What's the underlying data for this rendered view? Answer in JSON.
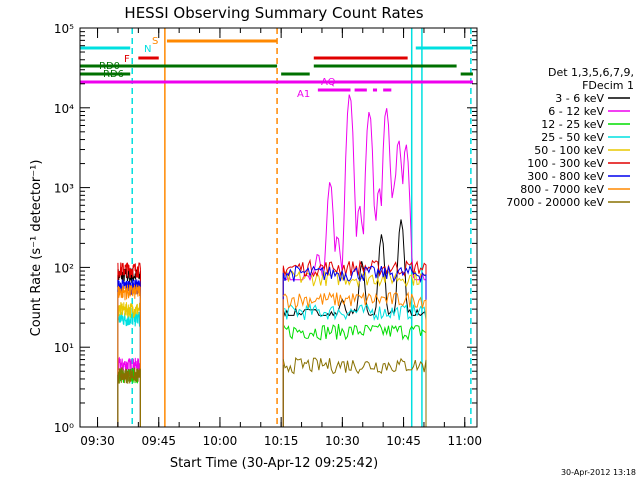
{
  "chart_data": {
    "type": "line",
    "title": "HESSI Observing Summary Count Rates",
    "xlabel": "Start Time (30-Apr-12 09:25:42)",
    "ylabel": "Count Rate (s⁻¹ detector⁻¹)",
    "ylog": true,
    "ylim": [
      1,
      100000
    ],
    "xlim": [
      "09:25:42",
      "11:03:00"
    ],
    "x_ticks": [
      "09:30",
      "09:45",
      "10:00",
      "10:15",
      "10:30",
      "10:45",
      "11:00"
    ],
    "y_ticks": [
      "10⁰",
      "10¹",
      "10²",
      "10³",
      "10⁴",
      "10⁵"
    ],
    "timestamp": "30-Apr-2012 13:18",
    "legend": {
      "placement": "right",
      "header": [
        "Det 1,3,5,6,7,9,",
        "FDecim 1"
      ],
      "entries": [
        {
          "name": "3 - 6 keV",
          "color": "#000000"
        },
        {
          "name": "6 - 12 keV",
          "color": "#ee00ee"
        },
        {
          "name": "12 - 25 keV",
          "color": "#00dd00"
        },
        {
          "name": "25 - 50 keV",
          "color": "#00e0e0"
        },
        {
          "name": "50 - 100 keV",
          "color": "#e8c800"
        },
        {
          "name": "100 - 300 keV",
          "color": "#e00000"
        },
        {
          "name": "300 - 800 keV",
          "color": "#0000ee"
        },
        {
          "name": "800 - 7000 keV",
          "color": "#ff8800"
        },
        {
          "name": "7000 - 20000 keV",
          "color": "#887000"
        }
      ]
    },
    "flags": [
      {
        "label": "N",
        "color": "#00e0e0",
        "segments": [
          [
            "09:25:42",
            "09:38:00"
          ],
          [
            "10:48:00",
            "11:02:00"
          ]
        ]
      },
      {
        "label": "S",
        "color": "#ff8800",
        "segments": [
          [
            "09:47:00",
            "10:14:00"
          ]
        ]
      },
      {
        "label": "F",
        "color": "#e00000",
        "segments": [
          [
            "09:40:00",
            "09:45:00"
          ],
          [
            "10:23:00",
            "10:46:00"
          ]
        ]
      },
      {
        "label": "RD0",
        "color": "#007000",
        "segments": [
          [
            "09:25:42",
            "10:14:00"
          ],
          [
            "10:23:00",
            "10:58:00"
          ]
        ]
      },
      {
        "label": "RD6",
        "color": "#007000",
        "segments": [
          [
            "09:25:42",
            "09:38:00"
          ],
          [
            "10:15:00",
            "10:22:00"
          ],
          [
            "10:59:00",
            "11:02:00"
          ]
        ]
      },
      {
        "label": "AQ",
        "color": "#ee00ee",
        "segments": [
          [
            "10:24:00",
            "10:32:00"
          ],
          [
            "10:33:00",
            "10:36:00"
          ],
          [
            "10:37:30",
            "10:38:30"
          ],
          [
            "10:40:00",
            "10:42:00"
          ]
        ]
      },
      {
        "label": "A1",
        "color": "#ee00ee",
        "segments": [
          [
            "09:25:42",
            "11:02:00"
          ]
        ]
      }
    ],
    "vlines": [
      {
        "time": "09:38:30",
        "color": "#00e0e0",
        "style": "dashed"
      },
      {
        "time": "09:46:30",
        "color": "#ff8800",
        "style": "solid"
      },
      {
        "time": "10:14:00",
        "color": "#ff8800",
        "style": "dashed"
      },
      {
        "time": "10:47:00",
        "color": "#00e0e0",
        "style": "solid"
      },
      {
        "time": "10:49:30",
        "color": "#00e0e0",
        "style": "solid"
      },
      {
        "time": "11:01:30",
        "color": "#00e0e0",
        "style": "dashed"
      }
    ],
    "segments": [
      {
        "start": "09:35:00",
        "end": "09:40:30",
        "levels": [
          80,
          6,
          4.5,
          23,
          30,
          95,
          58,
          50,
          4.5
        ]
      },
      {
        "start": "10:15:30",
        "end": "10:50:30",
        "levels": [
          25,
          70,
          16,
          28,
          75,
          100,
          85,
          40,
          6
        ]
      }
    ],
    "series": [
      {
        "name": "3 - 6 keV",
        "color": "#000000",
        "values": [
          [
            10.35,
            30
          ],
          [
            10.42,
            18
          ],
          [
            10.5,
            40
          ],
          [
            10.58,
            120
          ],
          [
            10.66,
            260
          ],
          [
            10.74,
            400
          ],
          [
            10.8,
            25
          ]
        ]
      },
      {
        "name": "6 - 12 keV",
        "color": "#ee00ee",
        "values": [
          [
            10.4,
            150
          ],
          [
            10.45,
            1200
          ],
          [
            10.48,
            250
          ],
          [
            10.53,
            15000
          ],
          [
            10.57,
            600
          ],
          [
            10.61,
            9000
          ],
          [
            10.65,
            1000
          ],
          [
            10.68,
            10000
          ],
          [
            10.71,
            1000
          ],
          [
            10.73,
            4000
          ],
          [
            10.76,
            3500
          ],
          [
            10.8,
            50
          ]
        ]
      }
    ]
  }
}
